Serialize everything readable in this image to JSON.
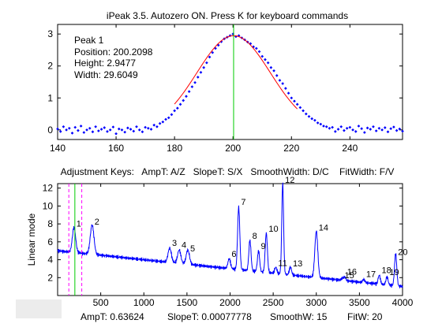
{
  "window_title": "iPeak 3.5. Autozero ON.  Press K for keyboard commands",
  "colors": {
    "signal": "#0000ff",
    "fit": "#ff0000",
    "center_line": "#00cc00",
    "limits": "#ff00ff",
    "axes": "#000000"
  },
  "upper_panel": {
    "info_lines": [
      "Peak 1",
      "Position: 200.2098",
      "Height: 2.9477",
      "Width: 29.6049"
    ]
  },
  "adjustment_keys_line": "Adjustment Keys:   AmpT: A/Z   SlopeT: S/X   SmoothWidth: D/C    FitWidth: F/V",
  "status": {
    "ampt": "AmpT: 0.63624",
    "slopet": "SlopeT: 0.00077778",
    "smoothw": "SmoothW: 15",
    "fitw": "FitW: 20"
  },
  "chart_data": [
    {
      "type": "scatter",
      "title": "iPeak 3.5. Autozero ON.  Press K for keyboard commands",
      "xlabel": "",
      "ylabel": "",
      "xlim": [
        140,
        258
      ],
      "ylim": [
        -0.3,
        3.3
      ],
      "xticks": [
        140,
        160,
        180,
        200,
        220,
        240
      ],
      "yticks": [
        0,
        1,
        2,
        3
      ],
      "x": [
        140,
        141,
        142,
        143,
        144,
        145,
        146,
        147,
        148,
        149,
        150,
        151,
        152,
        153,
        154,
        155,
        156,
        157,
        158,
        159,
        160,
        161,
        162,
        163,
        164,
        165,
        166,
        167,
        168,
        169,
        170,
        171,
        172,
        173,
        174,
        175,
        176,
        177,
        178,
        179,
        180,
        181,
        182,
        183,
        184,
        185,
        186,
        187,
        188,
        189,
        190,
        191,
        192,
        193,
        194,
        195,
        196,
        197,
        198,
        199,
        200,
        201,
        202,
        203,
        204,
        205,
        206,
        207,
        208,
        209,
        210,
        211,
        212,
        213,
        214,
        215,
        216,
        217,
        218,
        219,
        220,
        221,
        222,
        223,
        224,
        225,
        226,
        227,
        228,
        229,
        230,
        231,
        232,
        233,
        234,
        235,
        236,
        237,
        238,
        239,
        240,
        241,
        242,
        243,
        244,
        245,
        246,
        247,
        248,
        249,
        250,
        251,
        252,
        253,
        254,
        255,
        256,
        257,
        258
      ],
      "series": [
        {
          "values": [
            0.03,
            -0.05,
            0.1,
            0.0,
            0.05,
            -0.1,
            0.08,
            -0.02,
            0.12,
            -0.08,
            0.0,
            0.05,
            -0.06,
            0.1,
            -0.03,
            0.02,
            0.07,
            -0.05,
            0.0,
            0.09,
            -0.12,
            0.03,
            0.0,
            -0.07,
            0.06,
            0.02,
            -0.04,
            0.1,
            0.0,
            -0.06,
            0.08,
            0.05,
            0.02,
            0.15,
            0.1,
            0.2,
            0.25,
            0.33,
            0.38,
            0.48,
            0.6,
            0.68,
            0.8,
            0.92,
            1.05,
            1.2,
            1.35,
            1.48,
            1.65,
            1.8,
            1.95,
            2.1,
            2.28,
            2.42,
            2.55,
            2.65,
            2.76,
            2.85,
            2.9,
            2.95,
            3.0,
            2.92,
            2.95,
            2.88,
            2.82,
            2.75,
            2.7,
            2.6,
            2.55,
            2.45,
            2.3,
            2.2,
            2.1,
            1.95,
            1.85,
            1.7,
            1.55,
            1.45,
            1.3,
            1.15,
            1.0,
            0.9,
            0.8,
            0.7,
            0.6,
            0.5,
            0.42,
            0.35,
            0.3,
            0.22,
            0.18,
            0.12,
            0.1,
            0.05,
            0.08,
            -0.05,
            0.02,
            0.1,
            -0.02,
            0.05,
            0.08,
            0.0,
            -0.05,
            0.12,
            0.04,
            -0.08,
            0.06,
            0.02,
            0.1,
            -0.03,
            0.05,
            0.0,
            0.07,
            -0.06,
            0.04,
            0.09,
            -0.02,
            0.03,
            -0.04
          ]
        }
      ],
      "fit_line": {
        "type": "gaussian",
        "position": 200.2098,
        "height": 2.9477,
        "width": 29.6049,
        "x_range": [
          180,
          222
        ]
      },
      "center_marker_x": 200.2098
    },
    {
      "type": "line",
      "xlabel": "",
      "ylabel": "Linear mode",
      "xlim": [
        0,
        4000
      ],
      "ylim": [
        0,
        12.5
      ],
      "xticks": [
        500,
        1000,
        1500,
        2000,
        2500,
        3000,
        3500,
        4000
      ],
      "yticks": [
        2,
        4,
        6,
        8,
        10,
        12
      ],
      "baseline": {
        "start": 5.0,
        "end": 1.0
      },
      "peaks": [
        {
          "label": "1",
          "x": 190,
          "height": 2.8,
          "width": 45
        },
        {
          "label": "2",
          "x": 400,
          "height": 3.3,
          "width": 50
        },
        {
          "label": "3",
          "x": 1300,
          "height": 1.6,
          "width": 45
        },
        {
          "label": "4",
          "x": 1410,
          "height": 1.5,
          "width": 45
        },
        {
          "label": "5",
          "x": 1510,
          "height": 1.6,
          "width": 45
        },
        {
          "label": "6",
          "x": 1990,
          "height": 1.1,
          "width": 35
        },
        {
          "label": "7",
          "x": 2100,
          "height": 7.0,
          "width": 30
        },
        {
          "label": "8",
          "x": 2230,
          "height": 3.4,
          "width": 30
        },
        {
          "label": "9",
          "x": 2330,
          "height": 2.3,
          "width": 30
        },
        {
          "label": "10",
          "x": 2420,
          "height": 4.4,
          "width": 30
        },
        {
          "label": "11",
          "x": 2530,
          "height": 0.7,
          "width": 30
        },
        {
          "label": "12",
          "x": 2610,
          "height": 10.2,
          "width": 25
        },
        {
          "label": "13",
          "x": 2700,
          "height": 0.9,
          "width": 30
        },
        {
          "label": "14",
          "x": 3000,
          "height": 5.2,
          "width": 40
        },
        {
          "label": "15",
          "x": 3300,
          "height": 0.2,
          "width": 30
        },
        {
          "label": "16",
          "x": 3330,
          "height": 0.4,
          "width": 30
        },
        {
          "label": "17",
          "x": 3550,
          "height": 0.35,
          "width": 30
        },
        {
          "label": "18",
          "x": 3730,
          "height": 1.0,
          "width": 30
        },
        {
          "label": "19",
          "x": 3820,
          "height": 0.9,
          "width": 30
        },
        {
          "label": "20",
          "x": 3920,
          "height": 3.6,
          "width": 30
        }
      ],
      "cursor_lines": [
        {
          "x": 130,
          "color": "#ff00ff",
          "style": "dashed"
        },
        {
          "x": 200,
          "color": "#00cc00",
          "style": "solid"
        },
        {
          "x": 280,
          "color": "#ff00ff",
          "style": "dashed"
        }
      ]
    }
  ]
}
